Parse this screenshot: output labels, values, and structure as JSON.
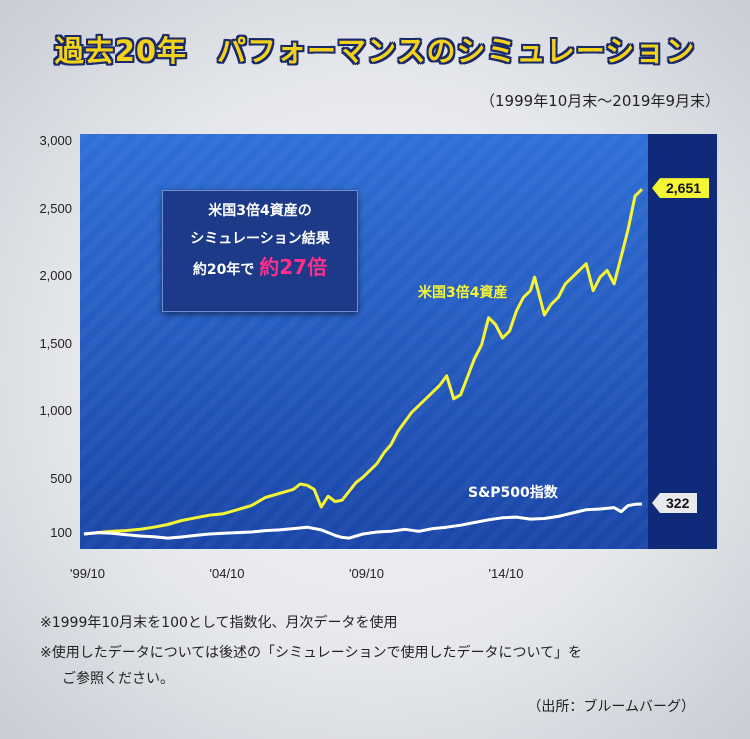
{
  "title": "過去20年　パフォーマンスのシミュレーション",
  "period": "（1999年10月末〜2019年9月末）",
  "infobox": {
    "line1": "米国3倍4資産の",
    "line2": "シミュレーション結果",
    "line3_prefix": "約20年で",
    "line3_highlight": "約27倍"
  },
  "notes": [
    "※1999年10月末を100として指数化、月次データを使用",
    "※使用したデータについては後述の「シミュレーションで使用したデータについて」を",
    "ご参照ください。"
  ],
  "source": "（出所：ブルームバーグ）",
  "colors": {
    "plot_bg": "#1d4fb5",
    "plot_bg_light": "#2c6ad0",
    "side_band": "#0e2a78",
    "leveraged_line": "#f5f534",
    "sp500_line": "#ffffff",
    "highlight": "#ff2f8a"
  },
  "chart_data": {
    "type": "line",
    "title": "過去20年　パフォーマンスのシミュレーション",
    "xlabel": "",
    "ylabel": "",
    "ylim": [
      0,
      3000
    ],
    "xlim": [
      1999.75,
      2019.75
    ],
    "yticks": [
      {
        "value": 100,
        "label": "100"
      },
      {
        "value": 500,
        "label": "500"
      },
      {
        "value": 1000,
        "label": "1,000"
      },
      {
        "value": 1500,
        "label": "1,500"
      },
      {
        "value": 2000,
        "label": "2,000"
      },
      {
        "value": 2500,
        "label": "2,500"
      },
      {
        "value": 3000,
        "label": "3,000"
      }
    ],
    "xticks": [
      {
        "value": 1999.75,
        "label": "'99/10"
      },
      {
        "value": 2004.75,
        "label": "'04/10"
      },
      {
        "value": 2009.75,
        "label": "'09/10"
      },
      {
        "value": 2014.75,
        "label": "'14/10"
      }
    ],
    "grid": false,
    "series": [
      {
        "name": "米国3倍4資産",
        "end_label": "2,651",
        "points": [
          [
            1999.75,
            100
          ],
          [
            2000.25,
            110
          ],
          [
            2000.75,
            120
          ],
          [
            2001.25,
            125
          ],
          [
            2001.75,
            135
          ],
          [
            2002.25,
            150
          ],
          [
            2002.75,
            170
          ],
          [
            2003.25,
            200
          ],
          [
            2003.75,
            220
          ],
          [
            2004.25,
            240
          ],
          [
            2004.75,
            250
          ],
          [
            2005.25,
            280
          ],
          [
            2005.75,
            310
          ],
          [
            2006.25,
            370
          ],
          [
            2006.75,
            400
          ],
          [
            2007.25,
            430
          ],
          [
            2007.5,
            470
          ],
          [
            2007.75,
            460
          ],
          [
            2008.0,
            430
          ],
          [
            2008.25,
            300
          ],
          [
            2008.5,
            380
          ],
          [
            2008.75,
            340
          ],
          [
            2009.0,
            350
          ],
          [
            2009.5,
            480
          ],
          [
            2009.75,
            520
          ],
          [
            2010.25,
            620
          ],
          [
            2010.5,
            700
          ],
          [
            2010.75,
            760
          ],
          [
            2011.0,
            860
          ],
          [
            2011.5,
            1000
          ],
          [
            2011.75,
            1050
          ],
          [
            2012.0,
            1100
          ],
          [
            2012.5,
            1200
          ],
          [
            2012.75,
            1270
          ],
          [
            2013.0,
            1100
          ],
          [
            2013.25,
            1130
          ],
          [
            2013.75,
            1400
          ],
          [
            2014.0,
            1500
          ],
          [
            2014.25,
            1700
          ],
          [
            2014.5,
            1650
          ],
          [
            2014.75,
            1550
          ],
          [
            2015.0,
            1600
          ],
          [
            2015.25,
            1750
          ],
          [
            2015.5,
            1850
          ],
          [
            2015.75,
            1900
          ],
          [
            2015.9,
            2000
          ],
          [
            2016.25,
            1720
          ],
          [
            2016.5,
            1800
          ],
          [
            2016.75,
            1850
          ],
          [
            2017.0,
            1950
          ],
          [
            2017.25,
            2000
          ],
          [
            2017.5,
            2050
          ],
          [
            2017.75,
            2100
          ],
          [
            2018.0,
            1900
          ],
          [
            2018.25,
            2000
          ],
          [
            2018.5,
            2050
          ],
          [
            2018.75,
            1950
          ],
          [
            2019.0,
            2150
          ],
          [
            2019.25,
            2350
          ],
          [
            2019.5,
            2600
          ],
          [
            2019.75,
            2651
          ]
        ]
      },
      {
        "name": "S&P500指数",
        "end_label": "322",
        "points": [
          [
            1999.75,
            100
          ],
          [
            2000.25,
            110
          ],
          [
            2000.75,
            105
          ],
          [
            2001.25,
            95
          ],
          [
            2001.75,
            85
          ],
          [
            2002.25,
            80
          ],
          [
            2002.75,
            70
          ],
          [
            2003.25,
            78
          ],
          [
            2003.75,
            90
          ],
          [
            2004.25,
            100
          ],
          [
            2004.75,
            105
          ],
          [
            2005.25,
            110
          ],
          [
            2005.75,
            115
          ],
          [
            2006.25,
            125
          ],
          [
            2006.75,
            130
          ],
          [
            2007.25,
            140
          ],
          [
            2007.75,
            150
          ],
          [
            2008.25,
            130
          ],
          [
            2008.75,
            90
          ],
          [
            2009.0,
            75
          ],
          [
            2009.25,
            70
          ],
          [
            2009.75,
            100
          ],
          [
            2010.25,
            115
          ],
          [
            2010.75,
            120
          ],
          [
            2011.25,
            135
          ],
          [
            2011.75,
            120
          ],
          [
            2012.25,
            140
          ],
          [
            2012.75,
            150
          ],
          [
            2013.25,
            165
          ],
          [
            2013.75,
            185
          ],
          [
            2014.25,
            205
          ],
          [
            2014.75,
            220
          ],
          [
            2015.25,
            225
          ],
          [
            2015.75,
            210
          ],
          [
            2016.25,
            215
          ],
          [
            2016.75,
            230
          ],
          [
            2017.25,
            255
          ],
          [
            2017.75,
            280
          ],
          [
            2018.25,
            285
          ],
          [
            2018.75,
            295
          ],
          [
            2019.0,
            265
          ],
          [
            2019.25,
            310
          ],
          [
            2019.5,
            320
          ],
          [
            2019.75,
            322
          ]
        ]
      }
    ]
  }
}
